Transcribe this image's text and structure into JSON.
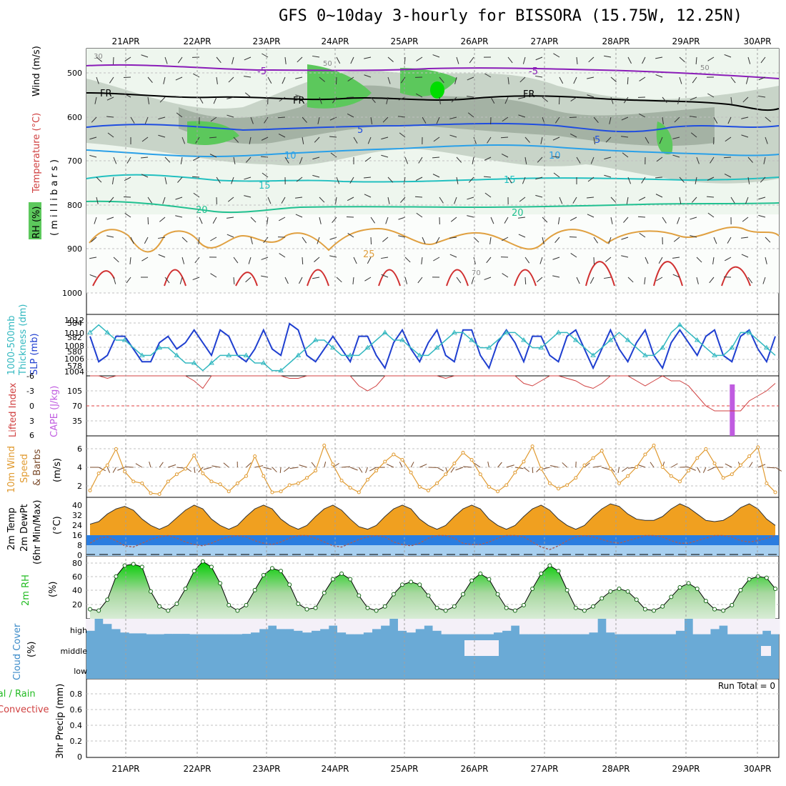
{
  "title": "GFS 0~10day 3-hourly for BISSORA (15.75W, 12.25N)",
  "dates": [
    "21APR",
    "22APR",
    "23APR",
    "24APR",
    "25APR",
    "26APR",
    "27APR",
    "28APR",
    "29APR",
    "30APR"
  ],
  "colors": {
    "rh_dark": "#9aa89a",
    "rh_mid": "#c4d0c4",
    "rh_light": "#e4efe4",
    "rh_green": "#5cc85c",
    "slp": "#1f3fd0",
    "thickness": "#33b8c0",
    "cape": "#c05ce0",
    "lifted": "#d04040",
    "wind": "#e09a30",
    "cloud": "#6aaad6",
    "rh2m": "#22cc22"
  },
  "panels": {
    "profile": {
      "ylabels": [
        "Temperature (°C)",
        "Wind (m/s)",
        "( m i l l i b a r s )",
        "RH (%)"
      ],
      "yticks": [
        "500",
        "600",
        "700",
        "800",
        "900",
        "1000"
      ],
      "contour_labels": [
        "-5",
        "FR",
        "5",
        "10",
        "15",
        "20",
        "25",
        "30",
        "50",
        "70"
      ]
    },
    "slp": {
      "ylabels": [
        "1000-500mb",
        "Thickness (dm)",
        "SLP (mb)"
      ],
      "left_ticks": [
        "584",
        "582",
        "580",
        "578"
      ],
      "right_ticks": [
        "1012",
        "1010",
        "1008",
        "1006",
        "1004"
      ]
    },
    "cape": {
      "ylabels": [
        "Lifted Index",
        "CAPE (J/kg)"
      ],
      "left_ticks": [
        "-6",
        "-3",
        "0",
        "3",
        "6"
      ],
      "right_ticks": [
        "105",
        "70",
        "35"
      ]
    },
    "wind10": {
      "ylabels": [
        "10m Wind",
        "Speed",
        "& Barbs",
        "(m/s)"
      ],
      "ticks": [
        "6",
        "4",
        "2"
      ]
    },
    "temp2m": {
      "ylabels": [
        "2m Temp",
        "2m DewPt",
        "(6hr Min/Max)",
        "(°C)"
      ],
      "ticks": [
        "40",
        "32",
        "24",
        "16",
        "8",
        "0"
      ]
    },
    "rh2m": {
      "ylabels": [
        "2m RH",
        "(%)"
      ],
      "ticks": [
        "80",
        "60",
        "40",
        "20"
      ]
    },
    "cloud": {
      "ylabels": [
        "Cloud Cover",
        "(%)"
      ],
      "levels": [
        "high",
        "middle",
        "low"
      ]
    },
    "precip": {
      "ylabels": [
        "Total / Rain",
        "Convective",
        "3hr Precip (mm)"
      ],
      "ticks": [
        "0.8",
        "0.6",
        "0.4",
        "0.2",
        "0"
      ],
      "run_total": "Run Total = 0"
    }
  },
  "chart_data": [
    {
      "type": "line",
      "name_hint": "slp_thickness",
      "x_unit": "3-hourly steps",
      "series": [
        {
          "name": "SLP (mb)",
          "values": [
            1010,
            1006,
            1007,
            1010,
            1010,
            1008,
            1006,
            1006,
            1009,
            1010,
            1008,
            1009,
            1011,
            1009,
            1007,
            1011,
            1010,
            1007,
            1006,
            1008,
            1011,
            1008,
            1007,
            1012,
            1011,
            1007,
            1006,
            1008,
            1010,
            1008,
            1006,
            1010,
            1010,
            1007,
            1005,
            1009,
            1011,
            1008,
            1006,
            1009,
            1011,
            1007,
            1006,
            1011,
            1011,
            1007,
            1005,
            1009,
            1011,
            1009,
            1006,
            1010,
            1010,
            1007,
            1006,
            1010,
            1011,
            1008,
            1005,
            1008,
            1011,
            1008,
            1006,
            1009,
            1011,
            1007,
            1005,
            1009,
            1011,
            1009,
            1007,
            1010,
            1011,
            1007,
            1006,
            1010,
            1011,
            1008,
            1006,
            1010
          ]
        },
        {
          "name": "1000-500mb Thickness (dm)",
          "values": [
            583,
            584,
            583,
            582,
            582,
            581,
            580,
            580,
            581,
            581,
            580,
            579,
            579,
            578,
            579,
            580,
            580,
            580,
            580,
            579,
            579,
            578,
            578,
            579,
            580,
            581,
            582,
            582,
            581,
            580,
            580,
            580,
            581,
            582,
            583,
            582,
            582,
            581,
            580,
            580,
            581,
            582,
            583,
            583,
            582,
            581,
            581,
            582,
            583,
            583,
            582,
            581,
            581,
            582,
            583,
            583,
            582,
            581,
            580,
            581,
            582,
            583,
            582,
            581,
            580,
            580,
            581,
            583,
            584,
            583,
            582,
            581,
            580,
            580,
            581,
            583,
            583,
            582,
            581,
            580
          ]
        }
      ],
      "ylim_slp": [
        1004,
        1013
      ],
      "ylim_thickness": [
        577.5,
        585
      ]
    },
    {
      "type": "bar",
      "name_hint": "cape",
      "series": [
        {
          "name": "CAPE (J/kg)",
          "values": [
            0,
            0,
            0,
            0,
            0,
            0,
            0,
            0,
            0,
            0,
            0,
            0,
            0,
            0,
            0,
            0,
            0,
            0,
            0,
            0,
            0,
            0,
            0,
            0,
            0,
            0,
            0,
            0,
            0,
            0,
            0,
            0,
            0,
            0,
            0,
            0,
            0,
            0,
            0,
            0,
            0,
            0,
            0,
            0,
            0,
            0,
            0,
            0,
            0,
            0,
            0,
            0,
            0,
            0,
            0,
            0,
            0,
            0,
            0,
            0,
            0,
            0,
            0,
            0,
            0,
            0,
            0,
            0,
            0,
            0,
            0,
            0,
            0,
            0,
            120,
            0,
            0,
            0,
            0,
            0
          ]
        }
      ],
      "ylim": [
        0,
        140
      ]
    },
    {
      "type": "line",
      "name_hint": "lifted_index",
      "series": [
        {
          "name": "Lifted Index",
          "values": [
            6,
            6,
            5.5,
            6,
            6,
            6,
            6,
            6,
            6,
            6,
            6,
            6,
            5,
            3.5,
            6,
            6,
            6,
            6,
            6,
            6,
            6,
            6,
            6,
            5.5,
            5.5,
            6,
            6,
            6,
            6,
            6,
            6,
            4,
            3,
            4,
            6,
            6,
            6,
            6,
            6,
            6,
            6,
            5.5,
            6,
            6,
            6,
            6,
            6,
            6,
            6,
            6,
            4.5,
            4,
            5,
            6,
            6,
            5.5,
            5,
            4,
            3.5,
            4.5,
            6,
            6,
            6,
            5,
            4,
            5,
            6,
            5,
            5,
            4,
            2,
            0,
            -1,
            -1,
            -1,
            -1,
            1,
            2,
            3,
            4.5
          ]
        }
      ],
      "ylim": [
        6,
        -6
      ]
    },
    {
      "type": "line",
      "name_hint": "wind10m",
      "series": [
        {
          "name": "10m Wind Speed (m/s)",
          "values": [
            1.6,
            3.5,
            4.4,
            6.2,
            3.7,
            2.6,
            2.4,
            1.3,
            1.2,
            2.6,
            3.4,
            4.0,
            5.5,
            3.5,
            2.6,
            2.3,
            1.5,
            2.4,
            3.2,
            5.4,
            3.2,
            1.4,
            1.5,
            2.2,
            2.4,
            3.0,
            3.8,
            6.6,
            4.5,
            2.7,
            1.9,
            1.4,
            2.8,
            3.8,
            4.8,
            5.6,
            5.0,
            3.6,
            2.0,
            1.6,
            2.4,
            3.4,
            4.6,
            5.8,
            5.0,
            3.4,
            2.0,
            1.5,
            2.2,
            3.6,
            4.8,
            6.5,
            4.0,
            2.4,
            1.8,
            2.2,
            3.0,
            4.4,
            5.2,
            6.0,
            4.0,
            2.4,
            3.2,
            4.2,
            5.6,
            6.6,
            4.2,
            3.2,
            2.6,
            3.8,
            5.2,
            6.2,
            4.6,
            3.0,
            3.4,
            4.4,
            5.4,
            6.4,
            2.4,
            1.4
          ]
        }
      ],
      "ylim": [
        1,
        7.5
      ]
    },
    {
      "type": "area",
      "name_hint": "temp2m",
      "series": [
        {
          "name": "2m Temp (°C)",
          "values": [
            25,
            27,
            33,
            37,
            39,
            36,
            29,
            24,
            21,
            24,
            30,
            36,
            40,
            37,
            29,
            24,
            21,
            24,
            31,
            37,
            40,
            37,
            29,
            24,
            21,
            24,
            31,
            37,
            40,
            36,
            29,
            23,
            21,
            24,
            31,
            37,
            40,
            37,
            29,
            24,
            21,
            24,
            31,
            37,
            40,
            37,
            29,
            24,
            21,
            24,
            31,
            37,
            40,
            36,
            29,
            24,
            21,
            24,
            31,
            37,
            41,
            39,
            33,
            29,
            28,
            28,
            31,
            37,
            41,
            38,
            33,
            28,
            27,
            28,
            32,
            38,
            41,
            37,
            29,
            24
          ]
        },
        {
          "name": "2m DewPt (°C)",
          "values": [
            10,
            14,
            15,
            12,
            8,
            7,
            10,
            13,
            15,
            16,
            14,
            11,
            9,
            8,
            10,
            13,
            15,
            16,
            15,
            12,
            10,
            9,
            11,
            14,
            16,
            16,
            14,
            11,
            8,
            7,
            10,
            13,
            15,
            16,
            15,
            11,
            9,
            8,
            10,
            14,
            16,
            16,
            14,
            10,
            9,
            9,
            11,
            14,
            16,
            16,
            15,
            11,
            7,
            5,
            8,
            12,
            15,
            16,
            15,
            13,
            11,
            10,
            12,
            14,
            16,
            16,
            15,
            12,
            10,
            10,
            12,
            14,
            16,
            16,
            15,
            12,
            11,
            12,
            14,
            16
          ]
        }
      ],
      "ylim": [
        0,
        45
      ]
    },
    {
      "type": "area",
      "name_hint": "rh2m",
      "series": [
        {
          "name": "2m RH (%)",
          "values": [
            14,
            12,
            28,
            62,
            78,
            80,
            76,
            40,
            18,
            12,
            22,
            44,
            70,
            84,
            76,
            52,
            20,
            12,
            20,
            42,
            64,
            74,
            70,
            50,
            22,
            14,
            16,
            38,
            58,
            66,
            58,
            34,
            16,
            12,
            18,
            36,
            50,
            54,
            50,
            34,
            16,
            12,
            18,
            36,
            56,
            66,
            58,
            36,
            16,
            12,
            20,
            44,
            66,
            78,
            70,
            42,
            16,
            12,
            18,
            30,
            40,
            44,
            40,
            28,
            14,
            12,
            18,
            32,
            46,
            52,
            44,
            26,
            14,
            12,
            20,
            42,
            58,
            62,
            60,
            44
          ]
        }
      ],
      "ylim": [
        0,
        90
      ]
    },
    {
      "type": "bar",
      "name_hint": "cloud_high",
      "series": [
        {
          "name": "high cloud (%)",
          "values": [
            30,
            100,
            70,
            40,
            20,
            15,
            15,
            10,
            10,
            12,
            12,
            12,
            10,
            10,
            10,
            10,
            10,
            10,
            12,
            20,
            40,
            60,
            40,
            40,
            30,
            20,
            30,
            40,
            60,
            20,
            10,
            10,
            20,
            40,
            60,
            100,
            30,
            20,
            40,
            60,
            30,
            10,
            10,
            10,
            10,
            10,
            10,
            20,
            30,
            60,
            10,
            10,
            10,
            10,
            10,
            10,
            10,
            10,
            20,
            100,
            20,
            10,
            10,
            10,
            10,
            10,
            10,
            10,
            30,
            100,
            10,
            10,
            40,
            60,
            10,
            10,
            10,
            10,
            30,
            10
          ]
        }
      ],
      "ylim": [
        0,
        100
      ]
    }
  ]
}
